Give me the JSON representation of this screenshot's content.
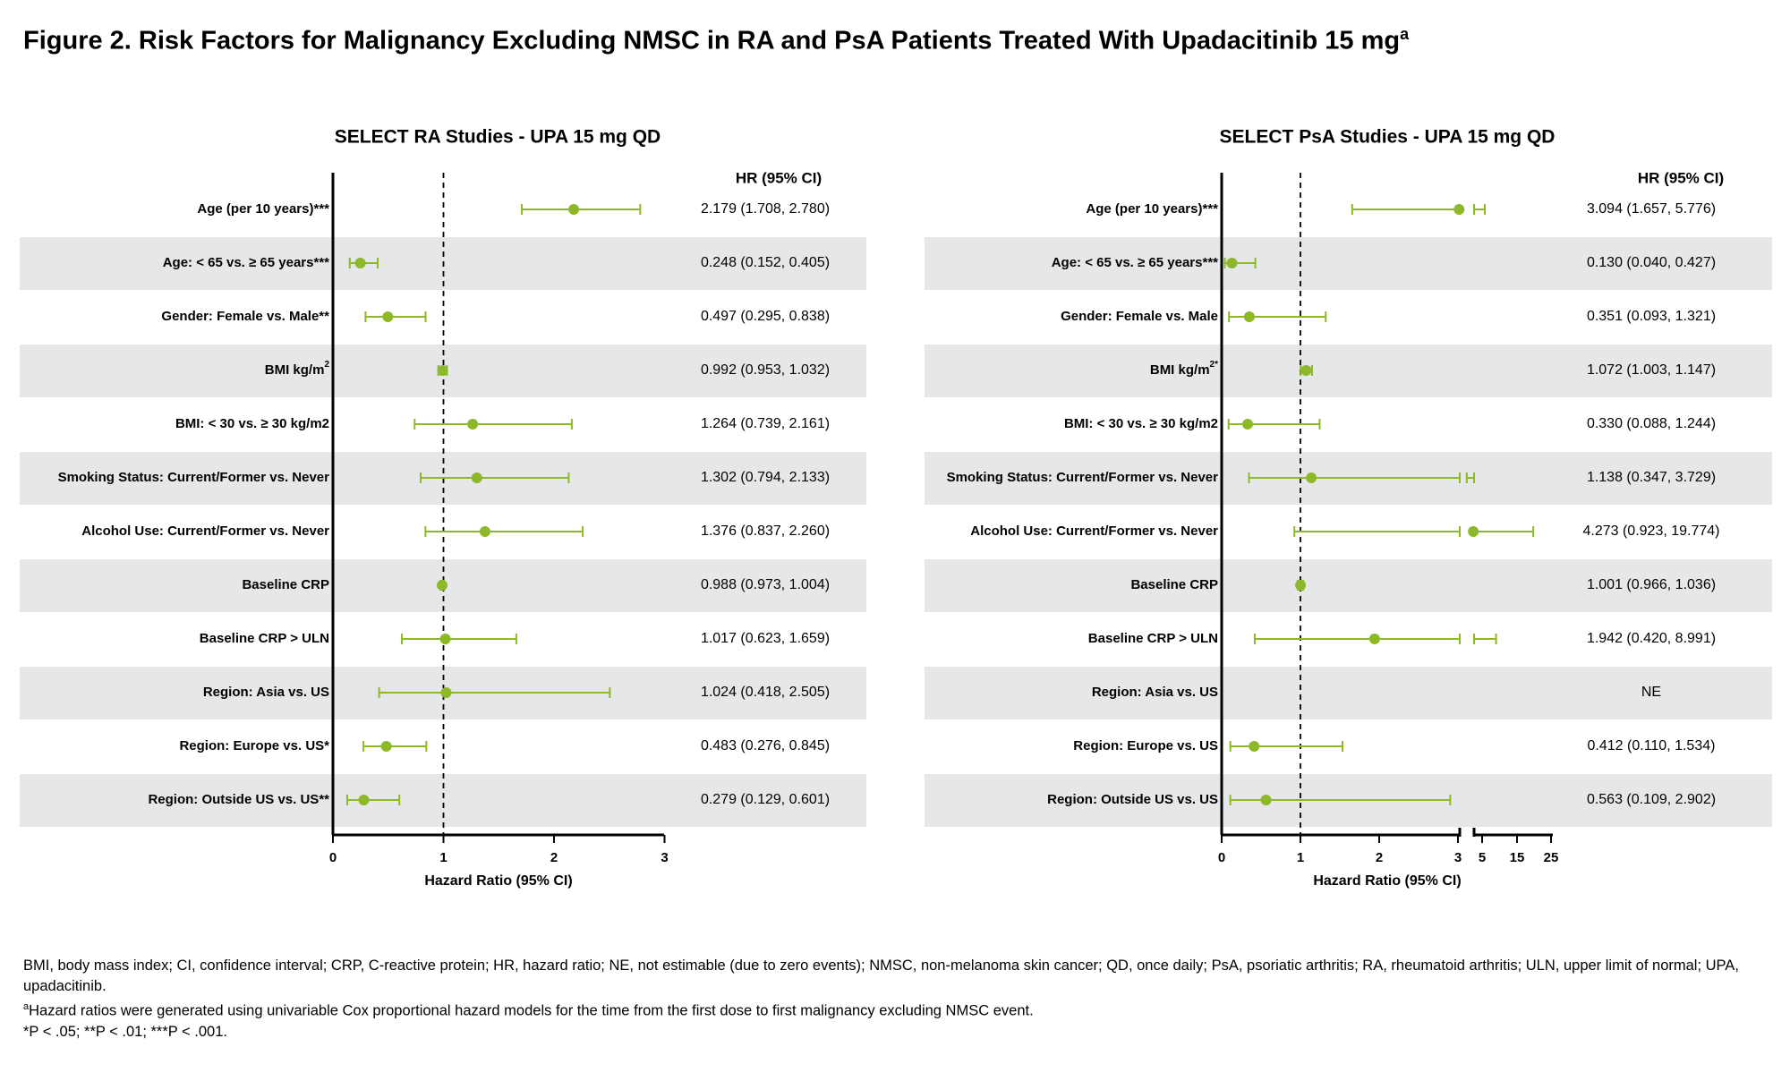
{
  "figure": {
    "title": "Figure 2. Risk Factors for Malignancy Excluding NMSC in RA and PsA Patients Treated With Upadacitinib 15 mg",
    "title_superscript": "a"
  },
  "colors": {
    "marker": "#8db82a",
    "band": "#e6e7e8",
    "axis": "#000000"
  },
  "chart_data": [
    {
      "type": "forest",
      "title": "SELECT RA Studies - UPA 15 mg QD",
      "xlabel": "Hazard Ratio (95% CI)",
      "hr_header": "HR (95% CI)",
      "xlim": [
        0,
        3
      ],
      "xticks": [
        "0",
        "1",
        "2",
        "3"
      ],
      "reference_line": 1,
      "rows": [
        {
          "label": "Age (per 10 years)***",
          "hr": 2.179,
          "lo": 1.708,
          "hi": 2.78,
          "text": "2.179 (1.708, 2.780)"
        },
        {
          "label": "Age: < 65 vs. ≥ 65 years***",
          "hr": 0.248,
          "lo": 0.152,
          "hi": 0.405,
          "text": "0.248 (0.152, 0.405)"
        },
        {
          "label": "Gender: Female vs. Male**",
          "hr": 0.497,
          "lo": 0.295,
          "hi": 0.838,
          "text": "0.497 (0.295, 0.838)"
        },
        {
          "label": "BMI kg/m",
          "label_sup": "2",
          "hr": 0.992,
          "lo": 0.953,
          "hi": 1.032,
          "text": "0.992 (0.953, 1.032)"
        },
        {
          "label": "BMI: < 30 vs. ≥ 30 kg/m2",
          "hr": 1.264,
          "lo": 0.739,
          "hi": 2.161,
          "text": "1.264 (0.739, 2.161)"
        },
        {
          "label": "Smoking Status: Current/Former vs. Never",
          "hr": 1.302,
          "lo": 0.794,
          "hi": 2.133,
          "text": "1.302 (0.794, 2.133)"
        },
        {
          "label": "Alcohol Use: Current/Former vs. Never",
          "hr": 1.376,
          "lo": 0.837,
          "hi": 2.26,
          "text": "1.376 (0.837, 2.260)"
        },
        {
          "label": "Baseline CRP",
          "hr": 0.988,
          "lo": 0.973,
          "hi": 1.004,
          "text": "0.988 (0.973, 1.004)"
        },
        {
          "label": "Baseline CRP > ULN",
          "hr": 1.017,
          "lo": 0.623,
          "hi": 1.659,
          "text": "1.017 (0.623, 1.659)"
        },
        {
          "label": "Region: Asia vs. US",
          "hr": 1.024,
          "lo": 0.418,
          "hi": 2.505,
          "text": "1.024 (0.418, 2.505)"
        },
        {
          "label": "Region: Europe vs. US*",
          "hr": 0.483,
          "lo": 0.276,
          "hi": 0.845,
          "text": "0.483 (0.276, 0.845)"
        },
        {
          "label": "Region: Outside US vs. US**",
          "hr": 0.279,
          "lo": 0.129,
          "hi": 0.601,
          "text": "0.279 (0.129, 0.601)"
        }
      ]
    },
    {
      "type": "forest",
      "title": "SELECT PsA Studies - UPA 15 mg QD",
      "xlabel": "Hazard Ratio (95% CI)",
      "hr_header": "HR (95% CI)",
      "xlim": [
        0,
        25
      ],
      "axis_break": [
        3,
        5
      ],
      "xticks": [
        "0",
        "1",
        "2",
        "3",
        "5",
        "15",
        "25"
      ],
      "reference_line": 1,
      "rows": [
        {
          "label": "Age (per 10 years)***",
          "hr": 3.094,
          "lo": 1.657,
          "hi": 5.776,
          "text": "3.094 (1.657, 5.776)"
        },
        {
          "label": "Age: < 65 vs. ≥ 65 years***",
          "hr": 0.13,
          "lo": 0.04,
          "hi": 0.427,
          "text": "0.130 (0.040, 0.427)"
        },
        {
          "label": "Gender: Female vs. Male",
          "hr": 0.351,
          "lo": 0.093,
          "hi": 1.321,
          "text": "0.351 (0.093, 1.321)"
        },
        {
          "label": "BMI kg/m",
          "label_sup": "2*",
          "hr": 1.072,
          "lo": 1.003,
          "hi": 1.147,
          "text": "1.072 (1.003, 1.147)"
        },
        {
          "label": "BMI: < 30 vs. ≥ 30 kg/m2",
          "hr": 0.33,
          "lo": 0.088,
          "hi": 1.244,
          "text": "0.330 (0.088, 1.244)"
        },
        {
          "label": "Smoking Status: Current/Former vs. Never",
          "hr": 1.138,
          "lo": 0.347,
          "hi": 3.729,
          "text": "1.138 (0.347, 3.729)"
        },
        {
          "label": "Alcohol Use: Current/Former vs. Never",
          "hr": 4.273,
          "lo": 0.923,
          "hi": 19.774,
          "text": "4.273 (0.923, 19.774)"
        },
        {
          "label": "Baseline CRP",
          "hr": 1.001,
          "lo": 0.966,
          "hi": 1.036,
          "text": "1.001 (0.966, 1.036)"
        },
        {
          "label": "Baseline CRP > ULN",
          "hr": 1.942,
          "lo": 0.42,
          "hi": 8.991,
          "text": "1.942 (0.420, 8.991)"
        },
        {
          "label": "Region: Asia vs. US",
          "hr": null,
          "lo": null,
          "hi": null,
          "text": "NE"
        },
        {
          "label": "Region: Europe vs. US",
          "hr": 0.412,
          "lo": 0.11,
          "hi": 1.534,
          "text": "0.412 (0.110, 1.534)"
        },
        {
          "label": "Region: Outside US vs. US",
          "hr": 0.563,
          "lo": 0.109,
          "hi": 2.902,
          "text": "0.563 (0.109, 2.902)"
        }
      ]
    }
  ],
  "footnotes": {
    "abbreviations": "BMI, body mass index; CI, confidence interval; CRP, C-reactive protein; HR, hazard ratio; NE, not estimable (due to zero events); NMSC, non-melanoma skin cancer; QD, once daily; PsA, psoriatic arthritis; RA, rheumatoid arthritis; ULN, upper limit of normal; UPA, upadacitinib.",
    "note_a_marker": "a",
    "note_a": "Hazard ratios were generated using univariable Cox proportional hazard models for the time from the first dose to first malignancy excluding NMSC event.",
    "significance": "*P < .05; **P < .01; ***P < .001."
  }
}
